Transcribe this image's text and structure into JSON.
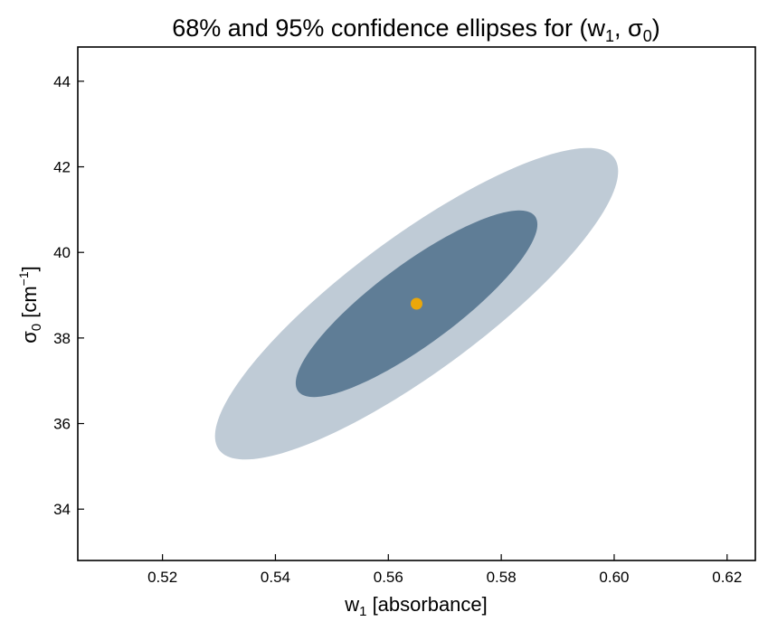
{
  "chart_data": {
    "type": "scatter",
    "title": "68% and 95% confidence ellipses for (w",
    "title_sub_w": "1",
    "title_mid": ", σ",
    "title_sub_sigma": "0",
    "title_end": ")",
    "xlabel": "w",
    "xlabel_sub": "1",
    "xlabel_rest": " [absorbance]",
    "ylabel": "σ",
    "ylabel_sub": "0",
    "ylabel_rest": " [cm",
    "ylabel_sup": "−1",
    "ylabel_end": "]",
    "xlim": [
      0.505,
      0.625
    ],
    "ylim": [
      32.8,
      44.8
    ],
    "xticks": [
      0.52,
      0.54,
      0.56,
      0.58,
      0.6,
      0.62
    ],
    "xtick_labels": [
      "0.52",
      "0.54",
      "0.56",
      "0.58",
      "0.60",
      "0.62"
    ],
    "yticks": [
      34,
      36,
      38,
      40,
      42,
      44
    ],
    "ytick_labels": [
      "34",
      "36",
      "38",
      "40",
      "42",
      "44"
    ],
    "grid": false,
    "center": {
      "x": 0.565,
      "y": 38.8
    },
    "ellipses": [
      {
        "level": "95%",
        "x_range": [
          0.5293,
          0.6007
        ],
        "y_range": [
          35.16,
          42.44
        ],
        "color": "#bfcbd6"
      },
      {
        "level": "68%",
        "x_range": [
          0.5436,
          0.5864
        ],
        "y_range": [
          36.62,
          40.98
        ],
        "color": "#5f7d96"
      }
    ],
    "center_color": "#eaa70a"
  }
}
